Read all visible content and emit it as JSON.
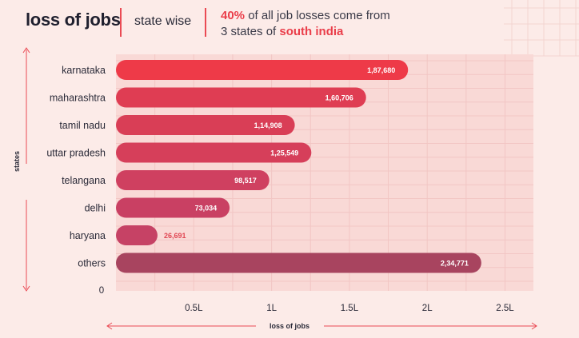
{
  "header": {
    "title": "loss of jobs",
    "subtitle": "state wise",
    "note_pct": "40%",
    "note_mid": " of all job losses come from",
    "note_line2_pre": "3 states of ",
    "note_region": "south india"
  },
  "chart_data": {
    "type": "bar",
    "orientation": "horizontal",
    "categories": [
      "karnataka",
      "maharashtra",
      "tamil nadu",
      "uttar pradesh",
      "telangana",
      "delhi",
      "haryana",
      "others"
    ],
    "values": [
      187680,
      160706,
      114908,
      125549,
      98517,
      73034,
      26691,
      234771
    ],
    "value_labels": [
      "1,87,680",
      "1,60,706",
      "1,14,908",
      "1,25,549",
      "98,517",
      "73,034",
      "26,691",
      "2,34,771"
    ],
    "bar_colors": [
      "#ee3a48",
      "#df3d53",
      "#d93e56",
      "#d63f5a",
      "#cf4060",
      "#c94063",
      "#c64265",
      "#a8445f"
    ],
    "xticks": [
      {
        "value": 50000,
        "label": "0.5L"
      },
      {
        "value": 100000,
        "label": "1L"
      },
      {
        "value": 150000,
        "label": "1.5L"
      },
      {
        "value": 200000,
        "label": "2L"
      },
      {
        "value": 250000,
        "label": "2.5L"
      }
    ],
    "origin_label": "0",
    "xlim": [
      0,
      260000
    ],
    "xlabel": "loss of jobs",
    "ylabel": "states",
    "grid": true,
    "colors": {
      "panel": "#f9d9d6",
      "grid": "#f2c6c4",
      "axis": "#ea4a54",
      "text": "#2a2a38"
    }
  }
}
